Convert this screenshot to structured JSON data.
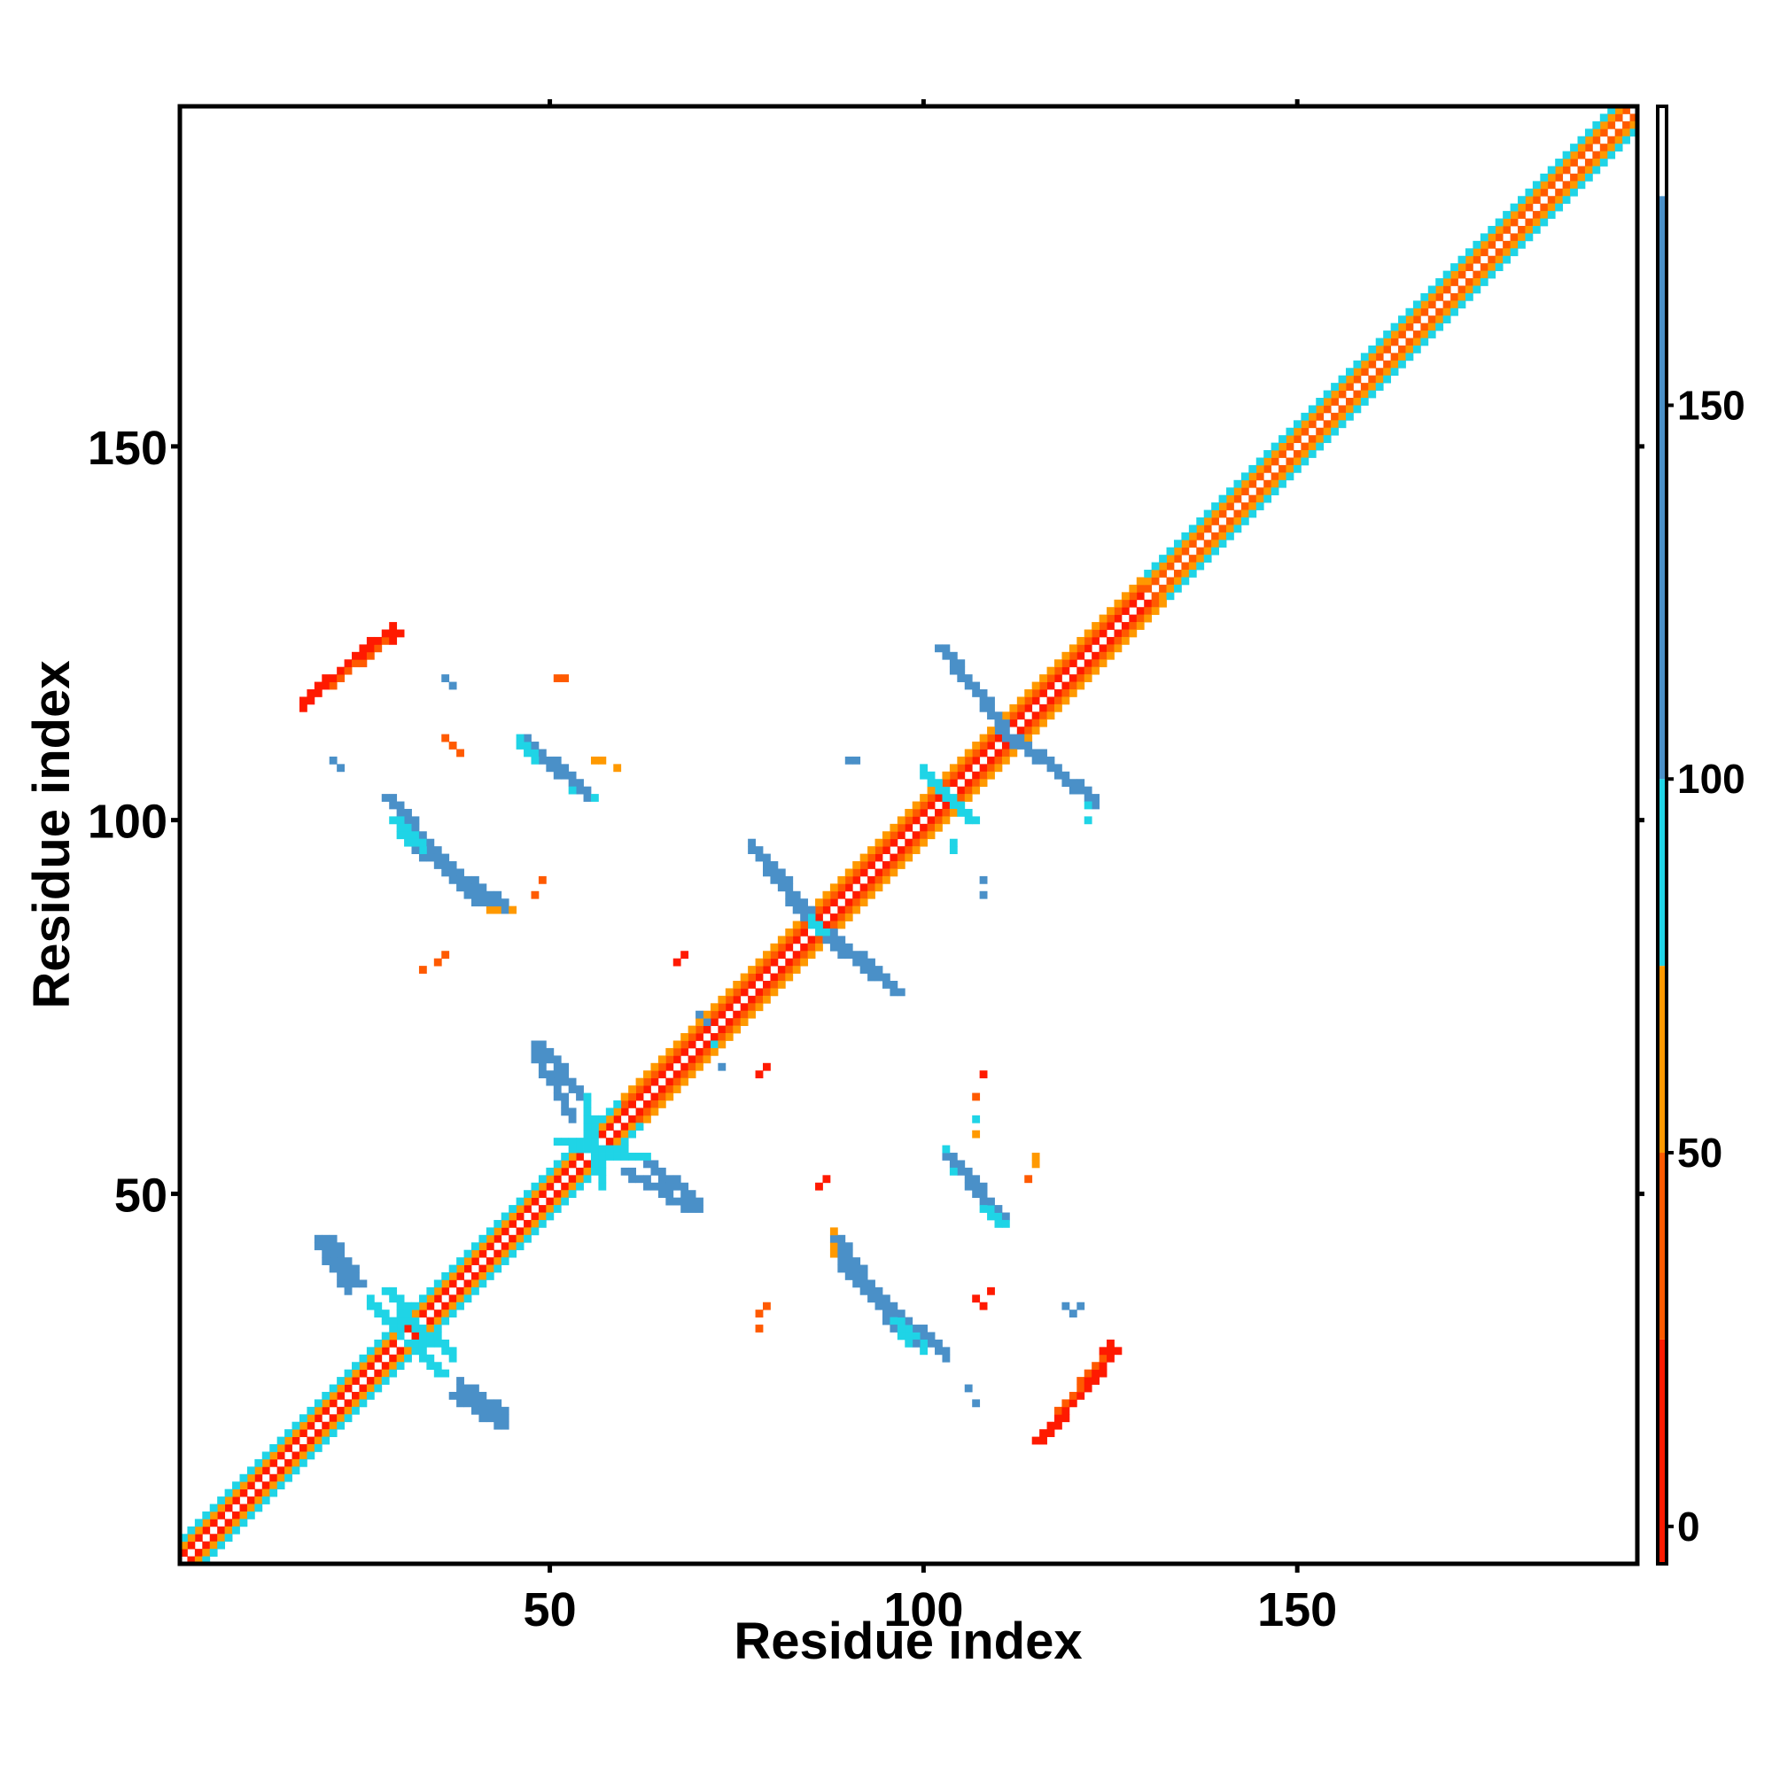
{
  "chart_data": {
    "type": "heatmap",
    "title": "",
    "xlabel": "Residue index",
    "ylabel": "Residue index",
    "xlim": [
      1,
      195
    ],
    "ylim": [
      1,
      195
    ],
    "x_ticks": [
      50,
      100,
      150
    ],
    "y_ticks": [
      50,
      100,
      150
    ],
    "colorbar": {
      "ticks": [
        0,
        50,
        100,
        150
      ],
      "range": [
        -5,
        190
      ],
      "bins": [
        {
          "from": -5,
          "to": 25,
          "color": "#ff1a00"
        },
        {
          "from": 25,
          "to": 50,
          "color": "#ff5a00"
        },
        {
          "from": 50,
          "to": 75,
          "color": "#ff9900"
        },
        {
          "from": 75,
          "to": 100,
          "color": "#1fd4e6"
        },
        {
          "from": 100,
          "to": 178,
          "color": "#4a90c8"
        },
        {
          "from": 178,
          "to": 190,
          "color": "#ffffff"
        }
      ]
    },
    "symmetric": true,
    "diagonal": {
      "from": 1,
      "to": 195,
      "band": 3,
      "colors": [
        "#ff1a00",
        "#ff5a00",
        "#ff9900",
        "#1fd4e6"
      ]
    },
    "segments": [
      {
        "i0": 1,
        "i1": 60,
        "off": 1,
        "v": 10
      },
      {
        "i0": 1,
        "i1": 60,
        "off": 2,
        "v": 60
      },
      {
        "i0": 1,
        "i1": 60,
        "off": 3,
        "v": 85
      },
      {
        "i0": 60,
        "i1": 130,
        "off": 1,
        "v": 5
      },
      {
        "i0": 60,
        "i1": 130,
        "off": 2,
        "v": 40
      },
      {
        "i0": 60,
        "i1": 130,
        "off": 3,
        "v": 65
      },
      {
        "i0": 130,
        "i1": 195,
        "off": 1,
        "v": 45
      },
      {
        "i0": 130,
        "i1": 195,
        "off": 2,
        "v": 70
      },
      {
        "i0": 130,
        "i1": 195,
        "off": 3,
        "v": 90
      }
    ],
    "strands": [
      {
        "x0": 20,
        "y0": 44,
        "x1": 24,
        "y1": 38,
        "w": 2,
        "v": 120
      },
      {
        "x0": 28,
        "y0": 37,
        "x1": 32,
        "y1": 32,
        "w": 2,
        "v": 90
      },
      {
        "x0": 31,
        "y0": 30,
        "x1": 35,
        "y1": 26,
        "w": 2,
        "v": 90
      },
      {
        "x0": 37,
        "y0": 23,
        "x1": 43,
        "y1": 19,
        "w": 2,
        "v": 120
      },
      {
        "x0": 48,
        "y0": 70,
        "x1": 54,
        "y1": 63,
        "w": 2,
        "v": 120
      },
      {
        "x0": 51,
        "y0": 57,
        "x1": 61,
        "y1": 55,
        "w": 3,
        "v": 90
      },
      {
        "x0": 60,
        "y0": 53,
        "x1": 68,
        "y1": 48,
        "w": 2,
        "v": 120
      },
      {
        "x0": 28,
        "y0": 103,
        "x1": 40,
        "y1": 89,
        "w": 2,
        "v": 120
      },
      {
        "x0": 29,
        "y0": 100,
        "x1": 31,
        "y1": 98,
        "w": 2,
        "v": 90
      },
      {
        "x0": 42,
        "y0": 88,
        "x1": 45,
        "y1": 88,
        "w": 1,
        "v": 60
      },
      {
        "x0": 46,
        "y0": 110,
        "x1": 54,
        "y1": 104,
        "w": 2,
        "v": 120
      },
      {
        "x0": 53,
        "y0": 104,
        "x1": 55,
        "y1": 103,
        "w": 2,
        "v": 90
      },
      {
        "x0": 77,
        "y0": 96,
        "x1": 84,
        "y1": 88,
        "w": 2,
        "v": 120
      },
      {
        "x0": 84,
        "y0": 87,
        "x1": 87,
        "y1": 84,
        "w": 2,
        "v": 90
      },
      {
        "x0": 87,
        "y0": 84,
        "x1": 96,
        "y1": 77,
        "w": 2,
        "v": 120
      },
      {
        "x0": 102,
        "y0": 123,
        "x1": 110,
        "y1": 113,
        "w": 2,
        "v": 120
      },
      {
        "x0": 110,
        "y0": 112,
        "x1": 122,
        "y1": 103,
        "w": 2,
        "v": 120
      },
      {
        "x0": 103,
        "y0": 103,
        "x1": 106,
        "y1": 100,
        "w": 2,
        "v": 90
      },
      {
        "x0": 88,
        "y0": 44,
        "x1": 96,
        "y1": 32,
        "w": 2,
        "v": 120
      },
      {
        "x0": 96,
        "y0": 33,
        "x1": 98,
        "y1": 30,
        "w": 2,
        "v": 90
      },
      {
        "x0": 103,
        "y0": 55,
        "x1": 110,
        "y1": 47,
        "w": 2,
        "v": 120
      },
      {
        "x0": 108,
        "y0": 48,
        "x1": 110,
        "y1": 46,
        "w": 2,
        "v": 90
      },
      {
        "x0": 17,
        "y0": 116,
        "x1": 29,
        "y1": 125,
        "w": 2,
        "v": 15
      },
      {
        "x0": 21,
        "y0": 118,
        "x1": 28,
        "y1": 124,
        "w": 1,
        "v": 40
      },
      {
        "x0": 115,
        "y0": 17,
        "x1": 125,
        "y1": 29,
        "w": 2,
        "v": 15
      },
      {
        "x0": 118,
        "y0": 21,
        "x1": 124,
        "y1": 28,
        "w": 1,
        "v": 40
      }
    ],
    "specks": [
      [
        36,
        119,
        120
      ],
      [
        37,
        118,
        120
      ],
      [
        21,
        108,
        120
      ],
      [
        22,
        107,
        120
      ],
      [
        36,
        111,
        40
      ],
      [
        37,
        110,
        40
      ],
      [
        38,
        109,
        40
      ],
      [
        51,
        119,
        40
      ],
      [
        52,
        119,
        40
      ],
      [
        56,
        108,
        60
      ],
      [
        57,
        108,
        60
      ],
      [
        59,
        107,
        60
      ],
      [
        33,
        80,
        40
      ],
      [
        35,
        81,
        40
      ],
      [
        36,
        82,
        40
      ],
      [
        49,
        92,
        40
      ],
      [
        48,
        90,
        40
      ],
      [
        67,
        81,
        10
      ],
      [
        68,
        82,
        10
      ],
      [
        70,
        74,
        120
      ],
      [
        71,
        73,
        120
      ],
      [
        72,
        70,
        90
      ],
      [
        73,
        67,
        120
      ],
      [
        78,
        66,
        10
      ],
      [
        79,
        67,
        10
      ],
      [
        90,
        108,
        120
      ],
      [
        91,
        108,
        120
      ],
      [
        108,
        92,
        120
      ],
      [
        108,
        90,
        120
      ],
      [
        104,
        97,
        90
      ],
      [
        104,
        96,
        90
      ],
      [
        108,
        66,
        10
      ],
      [
        107,
        63,
        40
      ],
      [
        107,
        60,
        90
      ],
      [
        107,
        58,
        60
      ],
      [
        115,
        55,
        60
      ],
      [
        115,
        54,
        60
      ],
      [
        114,
        52,
        40
      ],
      [
        87,
        52,
        10
      ],
      [
        86,
        51,
        10
      ],
      [
        79,
        35,
        40
      ],
      [
        78,
        34,
        40
      ],
      [
        78,
        32,
        40
      ],
      [
        107,
        36,
        10
      ],
      [
        108,
        35,
        10
      ],
      [
        109,
        37,
        10
      ],
      [
        119,
        35,
        120
      ],
      [
        120,
        34,
        120
      ],
      [
        121,
        35,
        120
      ],
      [
        99,
        30,
        120
      ],
      [
        106,
        24,
        120
      ],
      [
        107,
        22,
        120
      ],
      [
        122,
        102,
        90
      ],
      [
        122,
        100,
        90
      ]
    ]
  }
}
